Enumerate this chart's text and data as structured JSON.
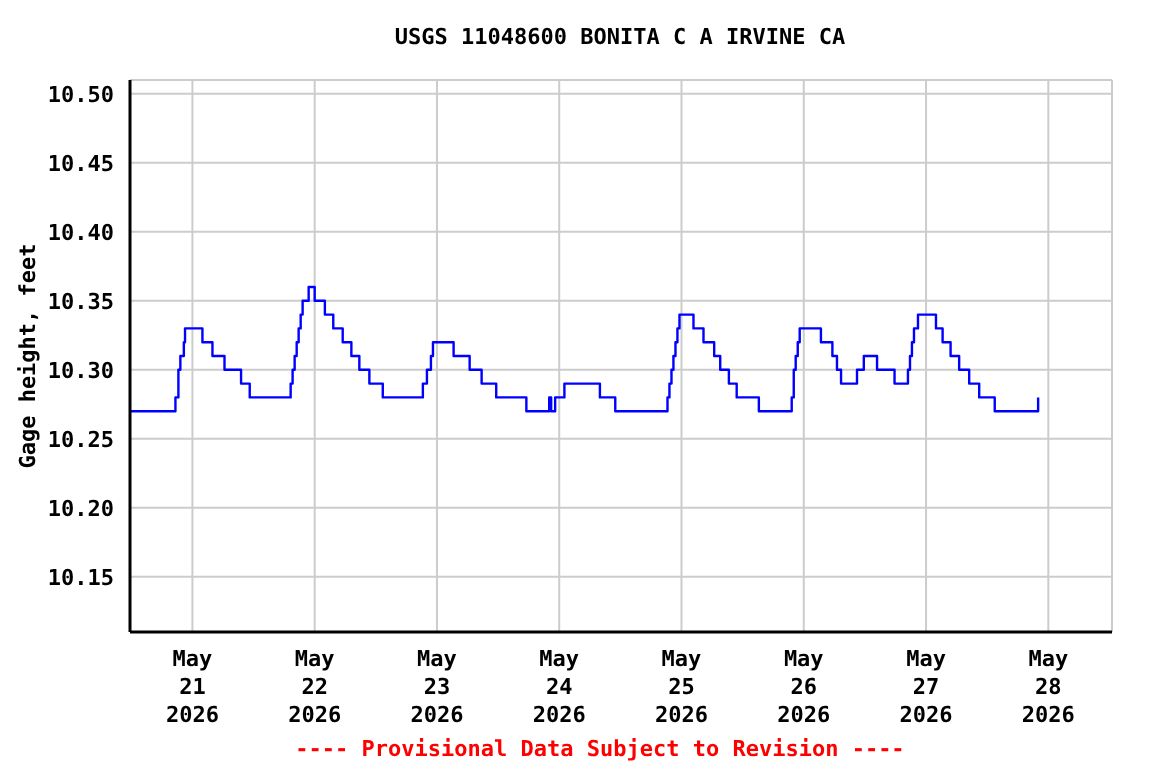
{
  "chart_data": {
    "type": "step",
    "title": "USGS 11048600 BONITA C A IRVINE CA",
    "ylabel": "Gage height, feet",
    "annotations": [
      "---- Provisional Data Subject to Revision ----"
    ],
    "series": [
      {
        "color": "#0000ff",
        "x": [
          "2026-05-20T11:48",
          "2026-05-20T20:28",
          "2026-05-20T20:40",
          "2026-05-20T21:15",
          "2026-05-20T21:38",
          "2026-05-20T22:19",
          "2026-05-20T22:33",
          "2026-05-21T01:51",
          "2026-05-21T01:58",
          "2026-05-21T03:49",
          "2026-05-21T03:56",
          "2026-05-21T06:11",
          "2026-05-21T06:18",
          "2026-05-21T09:26",
          "2026-05-21T09:33",
          "2026-05-21T11:08",
          "2026-05-21T11:15",
          "2026-05-21T19:00",
          "2026-05-21T19:17",
          "2026-05-21T19:40",
          "2026-05-21T20:04",
          "2026-05-21T20:28",
          "2026-05-21T20:51",
          "2026-05-21T21:15",
          "2026-05-21T21:38",
          "2026-05-21T22:37",
          "2026-05-21T22:49",
          "2026-05-21T23:53",
          "2026-05-22T00:00",
          "2026-05-22T01:51",
          "2026-05-22T02:00",
          "2026-05-22T03:32",
          "2026-05-22T03:39",
          "2026-05-22T05:23",
          "2026-05-22T05:30",
          "2026-05-22T07:05",
          "2026-05-22T07:12",
          "2026-05-22T08:39",
          "2026-05-22T08:46",
          "2026-05-22T10:37",
          "2026-05-22T10:44",
          "2026-05-22T13:15",
          "2026-05-22T13:22",
          "2026-05-22T21:07",
          "2026-05-22T21:14",
          "2026-05-22T22:02",
          "2026-05-22T22:49",
          "2026-05-22T23:13",
          "2026-05-23T03:09",
          "2026-05-23T03:16",
          "2026-05-23T06:18",
          "2026-05-23T06:25",
          "2026-05-23T08:39",
          "2026-05-23T08:46",
          "2026-05-23T11:31",
          "2026-05-23T11:38",
          "2026-05-23T17:26",
          "2026-05-23T17:33",
          "2026-05-23T21:38",
          "2026-05-23T22:02",
          "2026-05-23T22:25",
          "2026-05-23T23:12",
          "2026-05-24T00:54",
          "2026-05-24T01:01",
          "2026-05-24T07:52",
          "2026-05-24T07:59",
          "2026-05-24T10:53",
          "2026-05-24T11:00",
          "2026-05-24T20:57",
          "2026-05-24T21:15",
          "2026-05-24T21:38",
          "2026-05-24T22:02",
          "2026-05-24T22:25",
          "2026-05-24T22:49",
          "2026-05-24T23:12",
          "2026-05-24T23:36",
          "2026-05-25T02:14",
          "2026-05-25T02:21",
          "2026-05-25T04:12",
          "2026-05-25T04:19",
          "2026-05-25T06:18",
          "2026-05-25T06:25",
          "2026-05-25T07:29",
          "2026-05-25T07:36",
          "2026-05-25T09:11",
          "2026-05-25T09:18",
          "2026-05-25T10:43",
          "2026-05-25T10:50",
          "2026-05-25T15:04",
          "2026-05-25T15:11",
          "2026-05-25T21:21",
          "2026-05-25T21:38",
          "2026-05-25T22:02",
          "2026-05-25T22:25",
          "2026-05-25T22:49",
          "2026-05-25T23:12",
          "2026-05-26T03:15",
          "2026-05-26T03:22",
          "2026-05-26T05:30",
          "2026-05-26T05:37",
          "2026-05-26T06:24",
          "2026-05-26T06:31",
          "2026-05-26T07:12",
          "2026-05-26T07:19",
          "2026-05-26T10:20",
          "2026-05-26T10:27",
          "2026-05-26T11:40",
          "2026-05-26T11:47",
          "2026-05-26T14:16",
          "2026-05-26T14:23",
          "2026-05-26T17:42",
          "2026-05-26T17:49",
          "2026-05-26T20:20",
          "2026-05-26T20:27",
          "2026-05-26T20:51",
          "2026-05-26T21:14",
          "2026-05-26T21:38",
          "2026-05-26T22:25",
          "2026-05-27T01:50",
          "2026-05-27T01:57",
          "2026-05-27T03:08",
          "2026-05-27T03:15",
          "2026-05-27T04:42",
          "2026-05-27T04:49",
          "2026-05-27T06:23",
          "2026-05-27T06:30",
          "2026-05-27T08:21",
          "2026-05-27T08:28",
          "2026-05-27T10:19",
          "2026-05-27T10:26",
          "2026-05-27T13:22",
          "2026-05-27T13:29",
          "2026-05-27T21:42",
          "2026-05-27T22:00"
        ],
        "values": [
          10.27,
          10.27,
          10.28,
          10.3,
          10.31,
          10.32,
          10.33,
          10.33,
          10.32,
          10.32,
          10.31,
          10.31,
          10.3,
          10.3,
          10.29,
          10.29,
          10.28,
          10.28,
          10.29,
          10.3,
          10.31,
          10.32,
          10.33,
          10.34,
          10.35,
          10.35,
          10.36,
          10.36,
          10.35,
          10.35,
          10.34,
          10.34,
          10.33,
          10.33,
          10.32,
          10.32,
          10.31,
          10.31,
          10.3,
          10.3,
          10.29,
          10.29,
          10.28,
          10.28,
          10.29,
          10.3,
          10.31,
          10.32,
          10.32,
          10.31,
          10.31,
          10.3,
          10.3,
          10.29,
          10.29,
          10.28,
          10.28,
          10.27,
          10.27,
          10.28,
          10.27,
          10.28,
          10.28,
          10.29,
          10.29,
          10.28,
          10.28,
          10.27,
          10.27,
          10.28,
          10.29,
          10.3,
          10.31,
          10.32,
          10.33,
          10.34,
          10.34,
          10.33,
          10.33,
          10.32,
          10.32,
          10.31,
          10.31,
          10.3,
          10.3,
          10.29,
          10.29,
          10.28,
          10.28,
          10.27,
          10.27,
          10.28,
          10.3,
          10.31,
          10.32,
          10.33,
          10.33,
          10.32,
          10.32,
          10.31,
          10.31,
          10.3,
          10.3,
          10.29,
          10.29,
          10.3,
          10.3,
          10.31,
          10.31,
          10.3,
          10.3,
          10.29,
          10.29,
          10.3,
          10.31,
          10.32,
          10.33,
          10.34,
          10.34,
          10.33,
          10.33,
          10.32,
          10.32,
          10.31,
          10.31,
          10.3,
          10.3,
          10.29,
          10.29,
          10.28,
          10.28,
          10.27,
          10.27,
          10.28
        ]
      }
    ],
    "xlim": [
      "2026-05-20T11:45",
      "2026-05-28T12:30"
    ],
    "xticks": [
      {
        "value": "2026-05-21",
        "label": "May\n21\n2026"
      },
      {
        "value": "2026-05-22",
        "label": "May\n22\n2026"
      },
      {
        "value": "2026-05-23",
        "label": "May\n23\n2026"
      },
      {
        "value": "2026-05-24",
        "label": "May\n24\n2026"
      },
      {
        "value": "2026-05-25",
        "label": "May\n25\n2026"
      },
      {
        "value": "2026-05-26",
        "label": "May\n26\n2026"
      },
      {
        "value": "2026-05-27",
        "label": "May\n27\n2026"
      },
      {
        "value": "2026-05-28",
        "label": "May\n28\n2026"
      }
    ],
    "ylim": [
      10.11,
      10.51
    ],
    "yticks": [
      {
        "value": 10.15,
        "label": "10.15"
      },
      {
        "value": 10.2,
        "label": "10.20"
      },
      {
        "value": 10.25,
        "label": "10.25"
      },
      {
        "value": 10.3,
        "label": "10.30"
      },
      {
        "value": 10.35,
        "label": "10.35"
      },
      {
        "value": 10.4,
        "label": "10.40"
      },
      {
        "value": 10.45,
        "label": "10.45"
      },
      {
        "value": 10.5,
        "label": "10.50"
      }
    ],
    "grid": true,
    "line_style": "solid",
    "marker": "none"
  }
}
